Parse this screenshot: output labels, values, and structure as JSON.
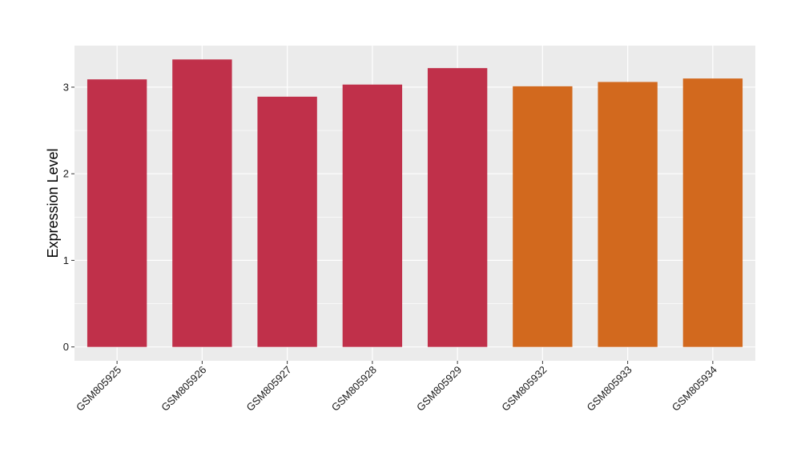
{
  "chart_data": {
    "type": "bar",
    "categories": [
      "GSM805925",
      "GSM805926",
      "GSM805927",
      "GSM805928",
      "GSM805929",
      "GSM805932",
      "GSM805933",
      "GSM805934"
    ],
    "values": [
      3.09,
      3.32,
      2.89,
      3.03,
      3.22,
      3.01,
      3.06,
      3.1
    ],
    "bar_colors": [
      "#c0304a",
      "#c0304a",
      "#c0304a",
      "#c0304a",
      "#c0304a",
      "#d2691e",
      "#d2691e",
      "#d2691e"
    ],
    "title": "",
    "xlabel": "",
    "ylabel": "Expression Level",
    "ylim": [
      -0.16,
      3.48
    ],
    "yticks": [
      0,
      1,
      2,
      3
    ],
    "grid": true,
    "legend": "none",
    "panel_background": "#ebebeb",
    "gridline_color": "#ffffff"
  }
}
